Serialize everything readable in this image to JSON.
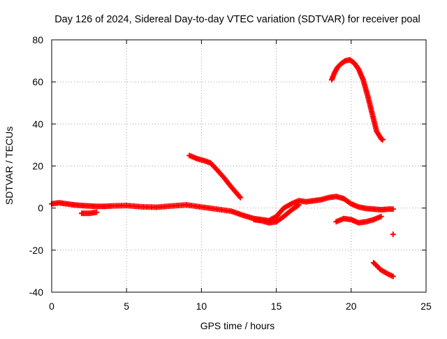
{
  "chart_data": {
    "type": "scatter",
    "title": "Day 126 of 2024, Sidereal Day-to-day VTEC variation (SDTVAR) for receiver poal",
    "xlabel": "GPS time / hours",
    "ylabel": "SDTVAR / TECUs",
    "xlim": [
      0,
      25
    ],
    "ylim": [
      -40,
      80
    ],
    "x_ticks": [
      0,
      5,
      10,
      15,
      20,
      25
    ],
    "y_ticks": [
      -40,
      -20,
      0,
      20,
      40,
      60,
      80
    ],
    "x_tick_labels": [
      "0",
      "5",
      "10",
      "15",
      "20",
      "25"
    ],
    "y_tick_labels": [
      "-40",
      "-20",
      "0",
      "20",
      "40",
      "60",
      "80"
    ],
    "grid": true,
    "legend": "none",
    "marker": "plus",
    "color": "#ff0000",
    "series": [
      {
        "name": "main-band",
        "x": [
          0.0,
          0.5,
          1.0,
          1.5,
          2.0,
          2.5,
          3.0,
          3.5,
          4.0,
          5.0,
          6.0,
          7.0,
          8.0,
          9.0,
          10.0,
          11.0,
          12.0,
          12.8,
          13.5,
          14.0,
          14.5,
          15.0,
          15.5,
          16.0,
          16.5,
          17.0,
          17.5,
          18.0,
          18.5,
          19.0,
          19.5,
          20.0,
          20.5,
          21.0,
          21.5,
          22.0,
          22.5,
          22.8
        ],
        "y": [
          2,
          2.5,
          2,
          1.5,
          1.2,
          1,
          0.8,
          0.8,
          1,
          1.2,
          0.6,
          0.4,
          1,
          1.5,
          0.5,
          -0.5,
          -1.5,
          -3.5,
          -5,
          -5.5,
          -6,
          -4,
          0,
          2,
          3.5,
          3,
          3.5,
          4,
          5,
          5.5,
          4.5,
          2,
          0.5,
          -0.2,
          -0.5,
          -0.8,
          -0.5,
          -0.5
        ]
      },
      {
        "name": "small-dip",
        "x": [
          2.0,
          2.5,
          3.0
        ],
        "y": [
          -2.5,
          -2.5,
          -2
        ]
      },
      {
        "name": "below-band",
        "x": [
          13.5,
          14.0,
          14.5,
          15.0,
          15.5,
          16.0,
          16.5
        ],
        "y": [
          -5.5,
          -6,
          -7,
          -6.5,
          -4,
          -1,
          1.5
        ]
      },
      {
        "name": "segment-25",
        "x": [
          9.2,
          9.7,
          10.2,
          10.6,
          11.0,
          11.5,
          12.0,
          12.6
        ],
        "y": [
          25,
          23.5,
          22.5,
          21.5,
          18.5,
          14.5,
          10,
          5
        ]
      },
      {
        "name": "arc-70",
        "x": [
          18.7,
          18.9,
          19.1,
          19.3,
          19.6,
          19.9,
          20.2,
          20.5,
          20.8,
          21.1,
          21.4,
          21.7,
          22.0,
          22.1
        ],
        "y": [
          61,
          64.5,
          67,
          68.5,
          70,
          70.5,
          69,
          66,
          61,
          53.5,
          45,
          36.5,
          33,
          32.5
        ]
      },
      {
        "name": "segment-neg",
        "x": [
          19.0,
          19.5,
          20.0,
          20.5,
          21.0,
          21.5,
          22.0
        ],
        "y": [
          -6.5,
          -5,
          -5.5,
          -7,
          -6.5,
          -5.5,
          -4
        ]
      },
      {
        "name": "tail",
        "x": [
          21.5,
          22.0,
          22.5,
          22.8
        ],
        "y": [
          -26,
          -29.5,
          -31.5,
          -32.5
        ]
      },
      {
        "name": "isolated",
        "x": [
          22.8
        ],
        "y": [
          -12.5
        ]
      }
    ]
  }
}
